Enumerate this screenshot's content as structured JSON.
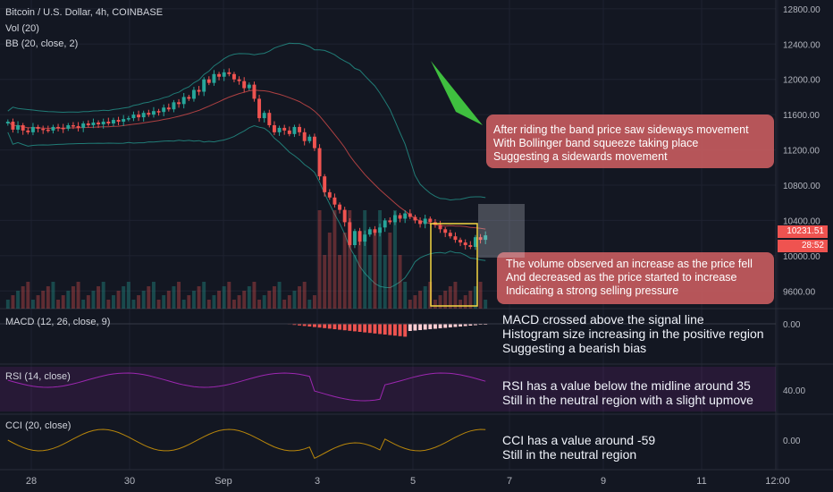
{
  "header": {
    "symbol": "Bitcoin / U.S. Dollar, 4h, COINBASE",
    "vol": "Vol (20)",
    "bb": "BB (20, close, 2)"
  },
  "panels": {
    "macd": "MACD (12, 26, close, 9)",
    "rsi": "RSI (14, close)",
    "cci": "CCI (20, close)"
  },
  "price_tag": "10231.51",
  "timer_tag": "28:52",
  "colors": {
    "up": "#26a69a",
    "down": "#ef5350",
    "bubble": "#c45b5e",
    "arrow": "#3fbf3f",
    "rsi": "#9c27b0",
    "cci": "#b8860b",
    "background": "#131722"
  },
  "annotations": {
    "bollinger": [
      "After riding the band price saw sideways movement",
      "With Bollinger band squeeze taking place",
      "Suggesting a sidewards movement"
    ],
    "volume": [
      "The volume observed an increase as the price fell",
      "And decreased as the price started to increase",
      "Indicating a strong selling pressure"
    ],
    "macd": [
      "MACD crossed above the signal line",
      "Histogram size increasing in the positive region",
      "Suggesting a bearish bias"
    ],
    "rsi": [
      "RSI has a value below the midline around 35",
      "Still in the neutral region with a slight upmove"
    ],
    "cci": [
      "CCI has a value around -59",
      "Still in the neutral region"
    ]
  },
  "chart_data": {
    "type": "candlestick",
    "price_axis": {
      "ticks": [
        "12800.00",
        "12400.00",
        "12000.00",
        "11600.00",
        "11200.00",
        "10800.00",
        "10400.00",
        "10000.00",
        "9600.00"
      ],
      "ylim": [
        9400,
        12900
      ]
    },
    "macd_axis": {
      "ticks": [
        "0.00"
      ]
    },
    "rsi_axis": {
      "ticks": [
        "40.00"
      ]
    },
    "cci_axis": {
      "ticks": [
        "0.00"
      ]
    },
    "x_ticks": [
      "28",
      "30",
      "Sep",
      "3",
      "5",
      "7",
      "9",
      "11",
      "12:00"
    ],
    "closes": [
      11520,
      11430,
      11480,
      11420,
      11400,
      11460,
      11440,
      11430,
      11420,
      11460,
      11450,
      11440,
      11480,
      11470,
      11450,
      11500,
      11480,
      11510,
      11490,
      11520,
      11500,
      11540,
      11520,
      11550,
      11560,
      11600,
      11570,
      11620,
      11600,
      11640,
      11630,
      11680,
      11660,
      11740,
      11720,
      11800,
      11780,
      11880,
      11860,
      12000,
      11960,
      12060,
      12030,
      12080,
      12060,
      12000,
      11980,
      11900,
      11940,
      11780,
      11560,
      11620,
      11480,
      11400,
      11450,
      11420,
      11380,
      11460,
      11400,
      11300,
      11350,
      11220,
      10900,
      10720,
      10660,
      10580,
      10520,
      10380,
      10120,
      10280,
      10160,
      10240,
      10300,
      10260,
      10320,
      10400,
      10380,
      10460,
      10420,
      10480,
      10440,
      10400,
      10360,
      10420,
      10380,
      10350,
      10300,
      10260,
      10220,
      10180,
      10150,
      10120,
      10100,
      10210,
      10180,
      10231
    ],
    "volume_note": "volume spike during the Sep 3-5 sell-off, declining afterwards",
    "macd_hist_note": "negative histogram deepening after Sep 3, then shrinking",
    "rsi_last": 35,
    "cci_last": -59
  }
}
